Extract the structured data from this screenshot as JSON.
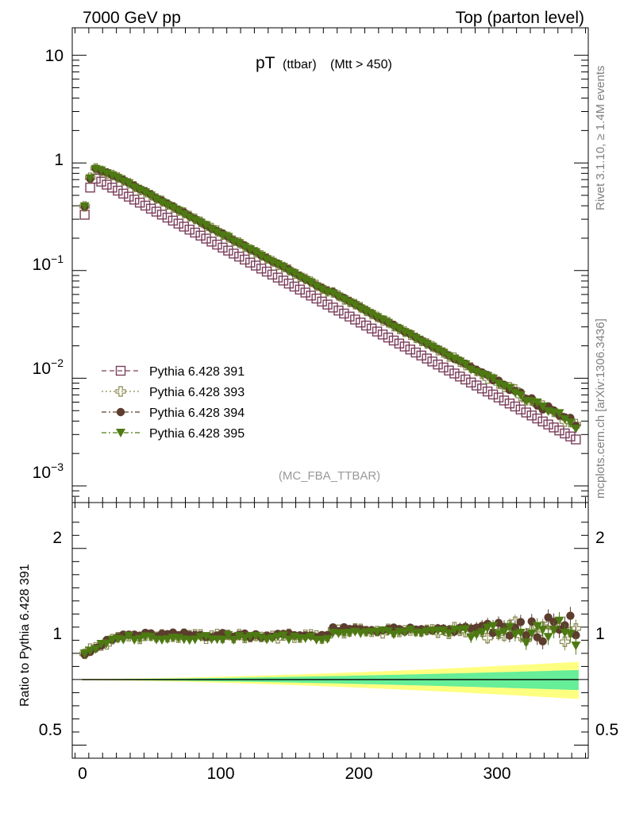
{
  "header": {
    "left": "7000 GeV pp",
    "right": "Top (parton level)"
  },
  "side_text": {
    "rivet": "Rivet 3.1.10, ≥ 1.4M events",
    "mcplots": "mcplots.cern.ch [arXiv:1306.3436]"
  },
  "chart_data": [
    {
      "type": "scatter",
      "panel": "main",
      "title_main": "pT",
      "title_small": "(ttbar)",
      "title_cut": "(Mtt > 450)",
      "watermark": "(MC_FBA_TTBAR)",
      "yscale": "log",
      "xlim": [
        -7,
        367
      ],
      "ylim": [
        0.0007,
        18
      ],
      "y_tick_labels": [
        "10^-3",
        "10^-2",
        "10^-1",
        "1",
        "10"
      ],
      "x_tick_labels": [
        "0",
        "100",
        "200",
        "300"
      ],
      "legend_placement": "lower-left",
      "model": {
        "x_start": 2,
        "x_step": 4,
        "n_points": 90,
        "peak_x": 14,
        "peak_value": 0.67,
        "low_bin_values": [
          0.33,
          0.59
        ],
        "end_value": 0.0027
      },
      "series": [
        {
          "name": "Pythia 6.428 391",
          "color": "#7b3f5b",
          "marker": "open-square",
          "line": "dashed",
          "ratio_shift": 1.0
        },
        {
          "name": "Pythia 6.428 393",
          "color": "#8a8a52",
          "marker": "open-cross",
          "line": "dotted",
          "ratio_shift": 1.33
        },
        {
          "name": "Pythia 6.428 394",
          "color": "#5c3d2e",
          "marker": "filled-circle",
          "line": "dash-dot",
          "ratio_shift": 1.34
        },
        {
          "name": "Pythia 6.428 395",
          "color": "#4d7a12",
          "marker": "filled-triangle-down",
          "line": "dash-dot",
          "ratio_shift": 1.32
        }
      ]
    },
    {
      "type": "scatter",
      "panel": "ratio",
      "ylabel": "Ratio to Pythia 6.428 391",
      "ylim": [
        0.4,
        2.35
      ],
      "y_tick_labels": [
        "0.5",
        "1",
        "2"
      ],
      "x_tick_labels": [
        "0",
        "100",
        "200",
        "300"
      ],
      "band_colors": {
        "outer": "#ffff80",
        "inner": "#66ee99"
      },
      "reference_line": 1
    }
  ]
}
